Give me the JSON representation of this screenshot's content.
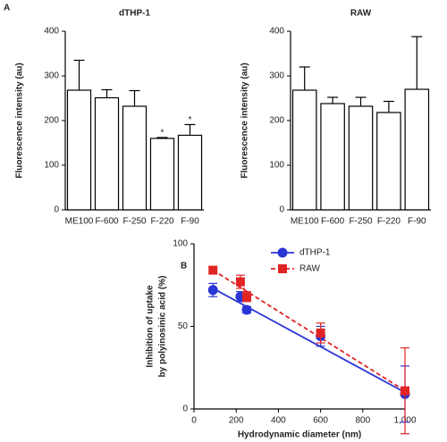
{
  "chart_data": [
    {
      "type": "bar",
      "panel": "A",
      "title": "dTHP-1",
      "ylabel": "Fluorescence intensity (au)",
      "categories": [
        "ME100",
        "F-600",
        "F-250",
        "F-220",
        "F-90"
      ],
      "values": [
        268,
        251,
        232,
        160,
        167
      ],
      "errors": [
        67,
        18,
        35,
        2,
        24
      ],
      "value_annotations": [
        null,
        null,
        null,
        "*",
        "*"
      ],
      "color": "#ffffff",
      "edge_color": "#000000",
      "ylim": [
        0,
        400
      ],
      "yticks": [
        0,
        100,
        200,
        300,
        400
      ]
    },
    {
      "type": "bar",
      "title": "RAW",
      "ylabel": "Fluorescence intensity (au)",
      "categories": [
        "ME100",
        "F-600",
        "F-250",
        "F-220",
        "F-90"
      ],
      "values": [
        268,
        238,
        232,
        218,
        270
      ],
      "errors": [
        52,
        14,
        20,
        25,
        118
      ],
      "color": "#ffffff",
      "edge_color": "#000000",
      "ylim": [
        0,
        400
      ],
      "yticks": [
        0,
        100,
        200,
        300,
        400
      ]
    },
    {
      "type": "scatter",
      "panel": "B",
      "xlabel": "Hydrodynamic diameter (nm)",
      "ylabel": [
        "Inhibition of uptake",
        "by polyinosinic acid (%)"
      ],
      "xlim": [
        0,
        1000
      ],
      "xticks": [
        0,
        200,
        400,
        600,
        800,
        {
          "value": 1000,
          "label": "1,000"
        }
      ],
      "ylim": [
        0,
        100
      ],
      "yticks": [
        0,
        50,
        100
      ],
      "legend": "upper right",
      "series": [
        {
          "name": "dTHP-1",
          "color": "#2a35d6",
          "marker": "circle",
          "line_style": "solid",
          "x": [
            90,
            220,
            250,
            600,
            1000
          ],
          "values": [
            72,
            68,
            60,
            44,
            9
          ],
          "errors": [
            4,
            3,
            2,
            6,
            17
          ],
          "fit_x": [
            90,
            1000
          ],
          "fit_y": [
            73,
            10
          ]
        },
        {
          "name": "RAW",
          "color": "#e02424",
          "marker": "square",
          "line_style": "dashed",
          "x": [
            90,
            220,
            250,
            600,
            1000
          ],
          "values": [
            84,
            77,
            68,
            46,
            11
          ],
          "errors": [
            2,
            4,
            3,
            6,
            26
          ],
          "fit_x": [
            90,
            1000
          ],
          "fit_y": [
            84,
            11
          ]
        }
      ]
    }
  ]
}
